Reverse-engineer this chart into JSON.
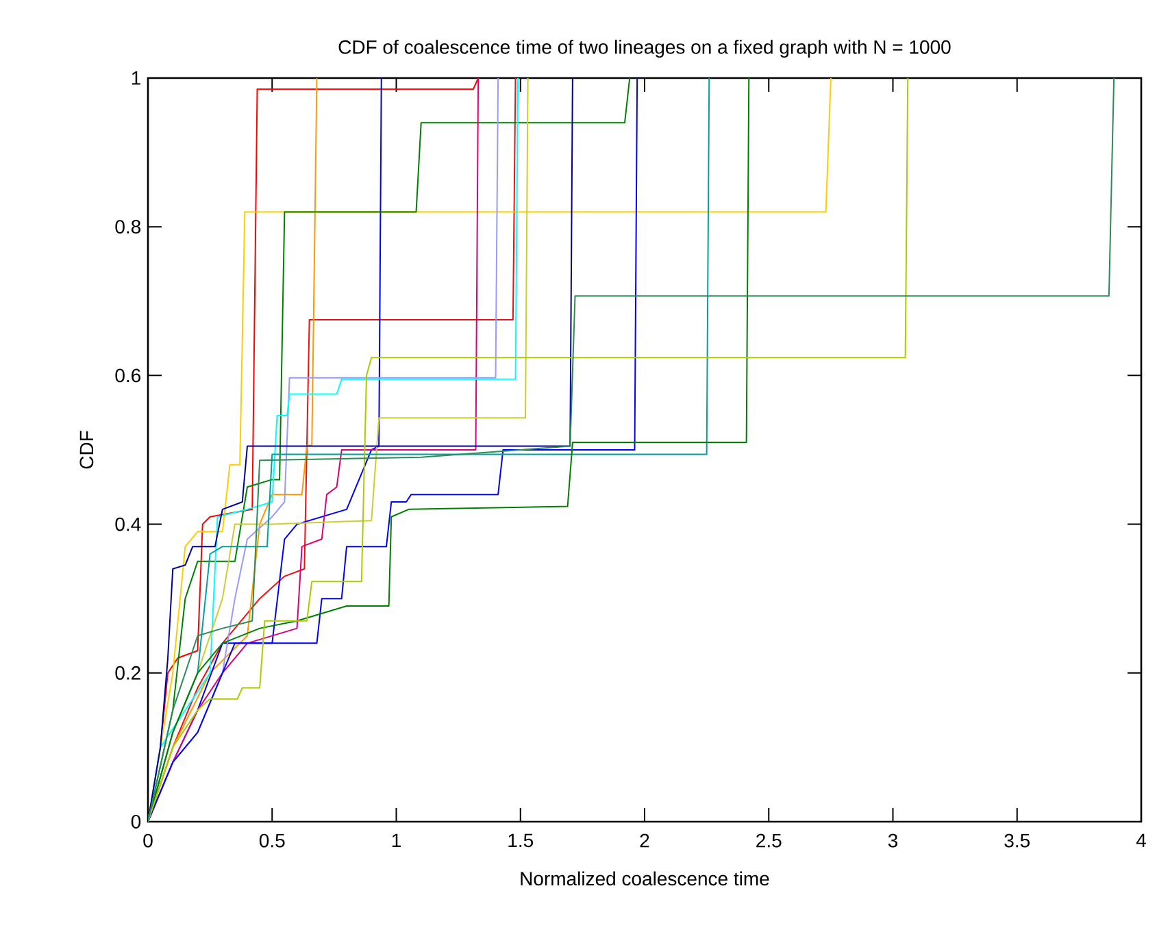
{
  "chart_data": {
    "type": "line",
    "title": "CDF of coalescence time of two lineages on a fixed graph with N = 1000",
    "xlabel": "Normalized coalescence time",
    "ylabel": "CDF",
    "xlim": [
      0,
      4
    ],
    "ylim": [
      0,
      1
    ],
    "xticks": [
      0,
      0.5,
      1,
      1.5,
      2,
      2.5,
      3,
      3.5,
      4
    ],
    "yticks": [
      0,
      0.2,
      0.4,
      0.6,
      0.8,
      1
    ],
    "grid": false,
    "marker": "none",
    "line_style": "solid",
    "series": [
      {
        "color": "#ff0000",
        "x": [
          0,
          0.05,
          0.08,
          0.12,
          0.2,
          0.22,
          0.25,
          0.42,
          0.44,
          1.31,
          1.33
        ],
        "values": [
          0,
          0.1,
          0.2,
          0.22,
          0.23,
          0.4,
          0.41,
          0.42,
          0.985,
          0.985,
          1
        ]
      },
      {
        "color": "#ee1111",
        "x": [
          0,
          0.1,
          0.2,
          0.3,
          0.45,
          0.55,
          0.63,
          0.65,
          1.47,
          1.48
        ],
        "values": [
          0,
          0.1,
          0.18,
          0.24,
          0.3,
          0.33,
          0.34,
          0.675,
          0.675,
          1
        ]
      },
      {
        "color": "#ff9900",
        "x": [
          0,
          0.1,
          0.25,
          0.4,
          0.45,
          0.5,
          0.62,
          0.64,
          0.66,
          0.68
        ],
        "values": [
          0,
          0.1,
          0.2,
          0.25,
          0.4,
          0.44,
          0.44,
          0.506,
          0.506,
          1
        ]
      },
      {
        "color": "#ffcc00",
        "x": [
          0,
          0.1,
          0.15,
          0.2,
          0.3,
          0.33,
          0.37,
          0.39,
          2.73,
          2.75
        ],
        "values": [
          0,
          0.2,
          0.37,
          0.39,
          0.39,
          0.48,
          0.48,
          0.82,
          0.82,
          1
        ]
      },
      {
        "color": "#0000ff",
        "x": [
          0,
          0.1,
          0.2,
          0.3,
          0.5,
          0.55,
          0.6,
          0.8,
          0.9,
          0.93,
          0.94
        ],
        "values": [
          0,
          0.08,
          0.15,
          0.24,
          0.24,
          0.38,
          0.4,
          0.42,
          0.5,
          0.505,
          1
        ]
      },
      {
        "color": "#008000",
        "x": [
          0,
          0.1,
          0.15,
          0.2,
          0.35,
          0.4,
          0.5,
          0.53,
          0.55,
          1.08,
          1.1,
          1.92,
          1.94
        ],
        "values": [
          0,
          0.15,
          0.3,
          0.35,
          0.35,
          0.45,
          0.46,
          0.46,
          0.82,
          0.82,
          0.94,
          0.94,
          1
        ]
      },
      {
        "color": "#dd0077",
        "x": [
          0,
          0.1,
          0.2,
          0.3,
          0.4,
          0.6,
          0.62,
          0.7,
          0.72,
          0.76,
          0.78,
          1.32,
          1.33
        ],
        "values": [
          0,
          0.08,
          0.15,
          0.2,
          0.24,
          0.26,
          0.37,
          0.38,
          0.44,
          0.45,
          0.5,
          0.5,
          1
        ]
      },
      {
        "color": "#9999ff",
        "x": [
          0,
          0.1,
          0.2,
          0.3,
          0.35,
          0.4,
          0.5,
          0.55,
          0.57,
          1.4,
          1.41
        ],
        "values": [
          0,
          0.08,
          0.12,
          0.2,
          0.3,
          0.38,
          0.41,
          0.43,
          0.597,
          0.597,
          1
        ]
      },
      {
        "color": "#00ffff",
        "x": [
          0,
          0.05,
          0.15,
          0.25,
          0.28,
          0.4,
          0.5,
          0.52,
          0.56,
          0.57,
          0.76,
          0.78,
          1.48,
          1.49
        ],
        "values": [
          0,
          0.1,
          0.15,
          0.2,
          0.41,
          0.42,
          0.43,
          0.546,
          0.546,
          0.575,
          0.575,
          0.595,
          0.595,
          1
        ]
      },
      {
        "color": "#cccc33",
        "x": [
          0,
          0.1,
          0.2,
          0.3,
          0.35,
          0.5,
          0.9,
          0.93,
          1.52,
          1.53
        ],
        "values": [
          0,
          0.12,
          0.2,
          0.3,
          0.4,
          0.4,
          0.405,
          0.543,
          0.543,
          1
        ]
      },
      {
        "color": "#000099",
        "x": [
          0,
          0.05,
          0.08,
          0.1,
          0.15,
          0.18,
          0.27,
          0.3,
          0.38,
          0.4,
          1.7,
          1.71
        ],
        "values": [
          0,
          0.1,
          0.22,
          0.34,
          0.345,
          0.37,
          0.37,
          0.42,
          0.43,
          0.505,
          0.505,
          1
        ]
      },
      {
        "color": "#0000ff",
        "x": [
          0,
          0.1,
          0.2,
          0.3,
          0.35,
          0.68,
          0.7,
          0.78,
          0.8,
          0.96,
          0.98,
          1.04,
          1.06,
          1.41,
          1.43,
          1.96,
          1.97
        ],
        "values": [
          0,
          0.08,
          0.12,
          0.2,
          0.24,
          0.24,
          0.3,
          0.3,
          0.37,
          0.37,
          0.43,
          0.43,
          0.44,
          0.44,
          0.5,
          0.5,
          1
        ]
      },
      {
        "color": "#00a0a0",
        "x": [
          0,
          0.1,
          0.2,
          0.25,
          0.3,
          0.48,
          0.5,
          2.25,
          2.26
        ],
        "values": [
          0,
          0.12,
          0.2,
          0.36,
          0.37,
          0.37,
          0.494,
          0.494,
          1
        ]
      },
      {
        "color": "#008000",
        "x": [
          0,
          0.1,
          0.2,
          0.3,
          0.45,
          0.6,
          0.8,
          0.97,
          0.98,
          1.05,
          1.69,
          1.71,
          2.41,
          2.42
        ],
        "values": [
          0,
          0.12,
          0.2,
          0.24,
          0.26,
          0.27,
          0.29,
          0.29,
          0.41,
          0.42,
          0.424,
          0.51,
          0.51,
          1
        ]
      },
      {
        "color": "#aacc00",
        "x": [
          0,
          0.1,
          0.2,
          0.25,
          0.36,
          0.38,
          0.45,
          0.47,
          0.64,
          0.66,
          0.86,
          0.88,
          0.9,
          3.05,
          3.06
        ],
        "values": [
          0,
          0.1,
          0.15,
          0.165,
          0.165,
          0.18,
          0.18,
          0.27,
          0.27,
          0.323,
          0.323,
          0.6,
          0.624,
          0.624,
          1
        ]
      },
      {
        "color": "#2e8b57",
        "x": [
          0,
          0.1,
          0.2,
          0.3,
          0.42,
          0.45,
          1.1,
          1.5,
          1.7,
          1.72,
          3.87,
          3.89
        ],
        "values": [
          0,
          0.15,
          0.25,
          0.26,
          0.27,
          0.486,
          0.49,
          0.5,
          0.505,
          0.707,
          0.707,
          1
        ]
      }
    ]
  }
}
